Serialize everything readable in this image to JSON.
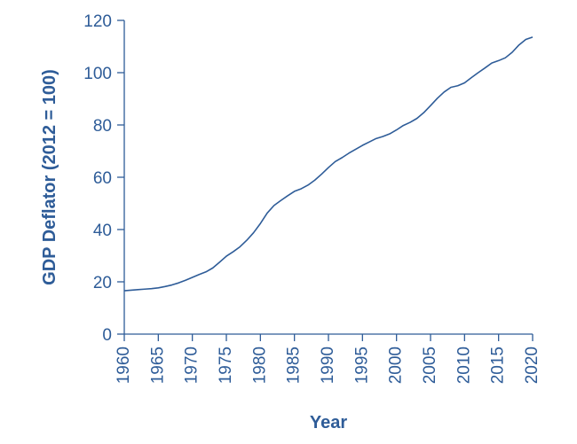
{
  "chart_data": {
    "type": "line",
    "title": "",
    "xlabel": "Year",
    "ylabel": "GDP Deflator (2012 = 100)",
    "xlim": [
      1960,
      2020
    ],
    "ylim": [
      0,
      120
    ],
    "x_ticks": [
      "1960",
      "1965",
      "1970",
      "1975",
      "1980",
      "1985",
      "1990",
      "1995",
      "2000",
      "2005",
      "2010",
      "2015",
      "2020"
    ],
    "y_ticks": [
      "0",
      "20",
      "40",
      "60",
      "80",
      "100",
      "120"
    ],
    "grid": false,
    "legend": "none",
    "colors": {
      "axis": "#2e5c98",
      "line": "#2e5c98"
    },
    "series": [
      {
        "x": [
          1960,
          1961,
          1962,
          1963,
          1964,
          1965,
          1966,
          1967,
          1968,
          1969,
          1970,
          1971,
          1972,
          1973,
          1974,
          1975,
          1976,
          1977,
          1978,
          1979,
          1980,
          1981,
          1982,
          1983,
          1984,
          1985,
          1986,
          1987,
          1988,
          1989,
          1990,
          1991,
          1992,
          1993,
          1994,
          1995,
          1996,
          1997,
          1998,
          1999,
          2000,
          2001,
          2002,
          2003,
          2004,
          2005,
          2006,
          2007,
          2008,
          2009,
          2010,
          2011,
          2012,
          2013,
          2014,
          2015,
          2016,
          2017,
          2018,
          2019,
          2020
        ],
        "values": [
          16.6,
          16.8,
          17.0,
          17.2,
          17.4,
          17.7,
          18.2,
          18.8,
          19.6,
          20.6,
          21.7,
          22.8,
          23.8,
          25.3,
          27.5,
          29.8,
          31.5,
          33.4,
          35.9,
          38.8,
          42.3,
          46.3,
          49.2,
          51.1,
          52.9,
          54.6,
          55.6,
          57.0,
          58.9,
          61.2,
          63.7,
          66.0,
          67.5,
          69.2,
          70.7,
          72.2,
          73.5,
          74.8,
          75.6,
          76.6,
          78.1,
          79.8,
          81.0,
          82.5,
          84.7,
          87.4,
          90.2,
          92.6,
          94.4,
          95.0,
          96.1,
          98.1,
          100.0,
          101.8,
          103.7,
          104.6,
          105.7,
          107.8,
          110.6,
          112.7,
          113.6
        ]
      }
    ]
  }
}
